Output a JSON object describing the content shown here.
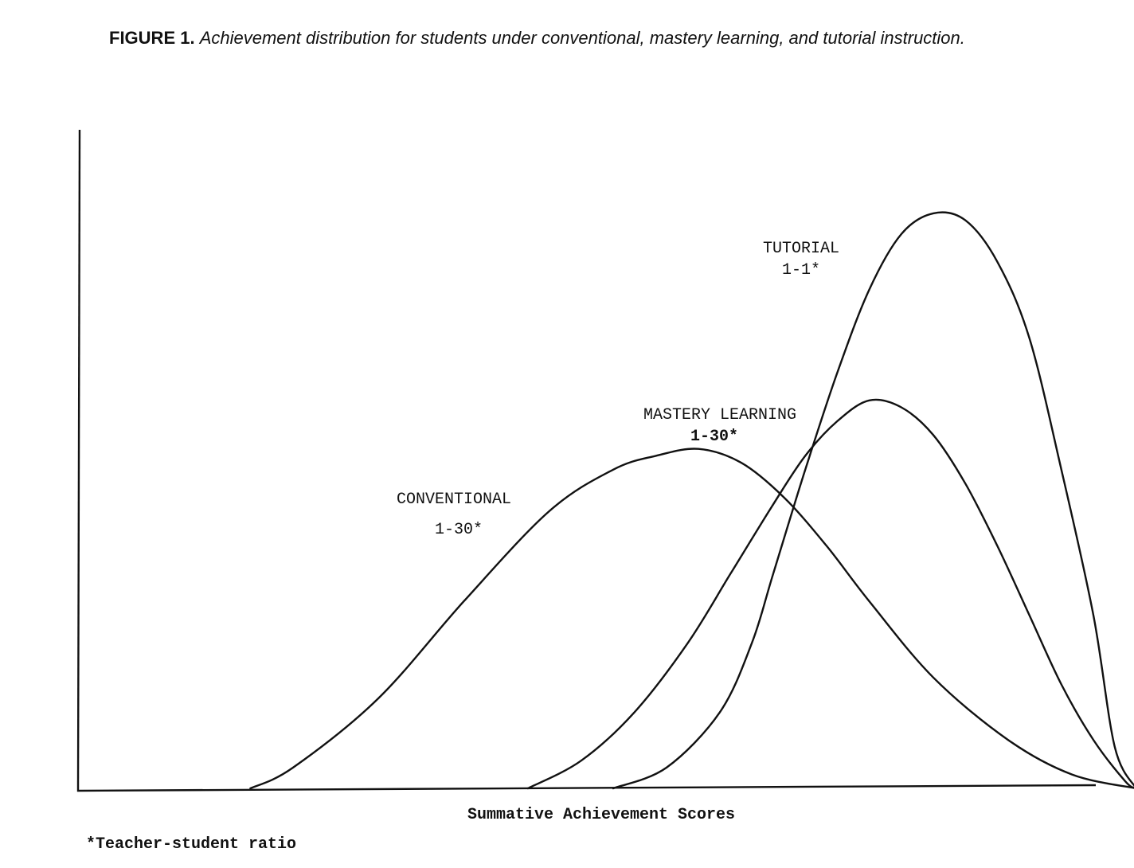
{
  "caption": {
    "label": "FIGURE 1.",
    "text": "Achievement distribution for students under conventional, mastery learning, and tutorial instruction."
  },
  "footnote": "*Teacher-student ratio",
  "chart_data": {
    "type": "line",
    "xlabel": "Summative Achievement Scores",
    "ylabel": "",
    "grid": false,
    "legend": "none",
    "x_ticks": false,
    "y_ticks": false,
    "series": [
      {
        "name": "CONVENTIONAL",
        "ratio": "1-30*",
        "x": [
          0.16,
          0.2,
          0.28,
          0.36,
          0.44,
          0.5,
          0.54,
          0.58,
          0.62,
          0.66,
          0.7,
          0.74,
          0.8,
          0.87,
          0.93,
          0.99
        ],
        "y": [
          0.0,
          0.03,
          0.13,
          0.27,
          0.4,
          0.46,
          0.48,
          0.49,
          0.47,
          0.42,
          0.35,
          0.27,
          0.16,
          0.07,
          0.02,
          0.0
        ]
      },
      {
        "name": "MASTERY LEARNING",
        "ratio": "1-30*",
        "x": [
          0.42,
          0.47,
          0.52,
          0.57,
          0.61,
          0.65,
          0.68,
          0.71,
          0.74,
          0.77,
          0.8,
          0.83,
          0.86,
          0.89,
          0.92,
          0.95,
          0.98,
          0.99
        ],
        "y": [
          0.0,
          0.04,
          0.11,
          0.21,
          0.31,
          0.41,
          0.48,
          0.53,
          0.56,
          0.55,
          0.51,
          0.44,
          0.35,
          0.25,
          0.15,
          0.07,
          0.01,
          0.0
        ]
      },
      {
        "name": "TUTORIAL",
        "ratio": "1-1*",
        "x": [
          0.5,
          0.55,
          0.6,
          0.63,
          0.65,
          0.68,
          0.71,
          0.74,
          0.77,
          0.8,
          0.83,
          0.86,
          0.89,
          0.92,
          0.95,
          0.97,
          0.99
        ],
        "y": [
          0.0,
          0.03,
          0.11,
          0.21,
          0.31,
          0.46,
          0.6,
          0.72,
          0.8,
          0.83,
          0.82,
          0.76,
          0.65,
          0.46,
          0.25,
          0.06,
          0.0
        ]
      }
    ]
  }
}
